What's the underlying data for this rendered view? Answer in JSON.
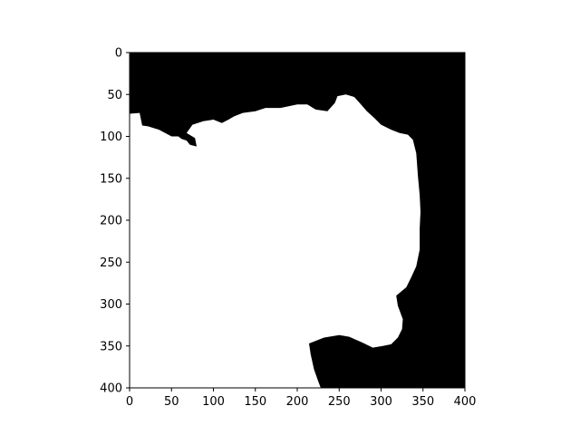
{
  "chart_data": {
    "type": "heatmap",
    "title": "",
    "xlabel": "",
    "ylabel": "",
    "colormap": {
      "background": "#000000",
      "region": "#ffffff"
    },
    "xlim": [
      0,
      400
    ],
    "ylim": [
      400,
      0
    ],
    "x_ticks": [
      0,
      50,
      100,
      150,
      200,
      250,
      300,
      350,
      400
    ],
    "y_ticks": [
      0,
      50,
      100,
      150,
      200,
      250,
      300,
      350,
      400
    ],
    "x_tick_labels": [
      "0",
      "50",
      "100",
      "150",
      "200",
      "250",
      "300",
      "350",
      "400"
    ],
    "y_tick_labels": [
      "0",
      "50",
      "100",
      "150",
      "200",
      "250",
      "300",
      "350",
      "400"
    ],
    "mask_outline": [
      [
        0,
        73
      ],
      [
        12,
        72
      ],
      [
        15,
        87
      ],
      [
        22,
        88
      ],
      [
        35,
        92
      ],
      [
        50,
        100
      ],
      [
        58,
        100
      ],
      [
        62,
        103
      ],
      [
        68,
        105
      ],
      [
        72,
        110
      ],
      [
        80,
        112
      ],
      [
        78,
        102
      ],
      [
        68,
        96
      ],
      [
        75,
        86
      ],
      [
        88,
        82
      ],
      [
        100,
        80
      ],
      [
        110,
        84
      ],
      [
        118,
        80
      ],
      [
        125,
        76
      ],
      [
        135,
        72
      ],
      [
        150,
        70
      ],
      [
        162,
        66
      ],
      [
        180,
        66
      ],
      [
        200,
        62
      ],
      [
        212,
        62
      ],
      [
        222,
        68
      ],
      [
        236,
        70
      ],
      [
        245,
        60
      ],
      [
        248,
        52
      ],
      [
        258,
        50
      ],
      [
        268,
        53
      ],
      [
        276,
        62
      ],
      [
        283,
        70
      ],
      [
        292,
        78
      ],
      [
        300,
        86
      ],
      [
        312,
        92
      ],
      [
        322,
        96
      ],
      [
        332,
        98
      ],
      [
        338,
        104
      ],
      [
        342,
        120
      ],
      [
        344,
        148
      ],
      [
        346,
        170
      ],
      [
        347,
        190
      ],
      [
        346,
        210
      ],
      [
        346,
        235
      ],
      [
        342,
        255
      ],
      [
        336,
        268
      ],
      [
        330,
        280
      ],
      [
        318,
        290
      ],
      [
        320,
        302
      ],
      [
        326,
        318
      ],
      [
        325,
        330
      ],
      [
        320,
        340
      ],
      [
        312,
        348
      ],
      [
        302,
        350
      ],
      [
        290,
        352
      ],
      [
        278,
        346
      ],
      [
        262,
        339
      ],
      [
        250,
        337
      ],
      [
        232,
        340
      ],
      [
        214,
        347
      ],
      [
        216,
        360
      ],
      [
        220,
        378
      ],
      [
        225,
        392
      ],
      [
        228,
        400
      ],
      [
        0,
        400
      ]
    ]
  }
}
